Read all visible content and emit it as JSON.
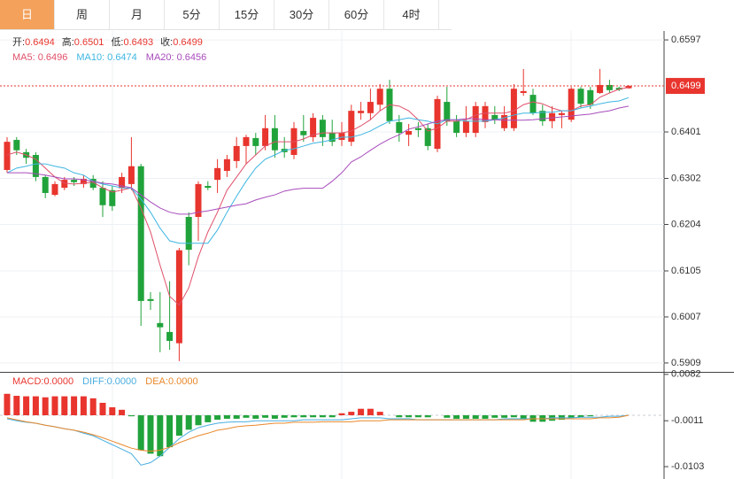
{
  "tabs": [
    "日",
    "周",
    "月",
    "5分",
    "15分",
    "30分",
    "60分",
    "4时"
  ],
  "chart_data": [
    {
      "type": "candlestick",
      "ohlc_labels": [
        "开:",
        "高:",
        "低:",
        "收:"
      ],
      "up_color": "#e8352e",
      "down_color": "#21a33b",
      "ylim": [
        0.589,
        0.6616
      ],
      "yticks": [
        0.5909,
        0.6007,
        0.6105,
        0.6204,
        0.6302,
        0.6401,
        0.6597
      ],
      "open": [
        0.632,
        0.6384,
        0.6358,
        0.6352,
        0.6305,
        0.6267,
        0.6282,
        0.6299,
        0.629,
        0.6301,
        0.6282,
        0.6277,
        0.6281,
        0.629,
        0.6328,
        0.6045,
        0.5994,
        0.5975,
        0.5951,
        0.622,
        0.622,
        0.6286,
        0.6299,
        0.6318,
        0.6339,
        0.6371,
        0.6388,
        0.6371,
        0.6409,
        0.6365,
        0.6352,
        0.6403,
        0.639,
        0.6427,
        0.6399,
        0.6384,
        0.638,
        0.6441,
        0.6441,
        0.6459,
        0.6493,
        0.6422,
        0.6395,
        0.6409,
        0.6409,
        0.6365,
        0.6465,
        0.6424,
        0.6399,
        0.6399,
        0.6422,
        0.6437,
        0.6409,
        0.6409,
        0.6484,
        0.648,
        0.6446,
        0.6424,
        0.6437,
        0.6427,
        0.6493,
        0.649,
        0.6484,
        0.6501,
        0.6495,
        0.6494
      ],
      "high": [
        0.639,
        0.639,
        0.6365,
        0.6358,
        0.6309,
        0.6296,
        0.6305,
        0.6305,
        0.6309,
        0.6309,
        0.6296,
        0.6286,
        0.6314,
        0.639,
        0.6333,
        0.606,
        0.606,
        0.6083,
        0.6154,
        0.623,
        0.6296,
        0.6296,
        0.6343,
        0.6352,
        0.639,
        0.6395,
        0.6399,
        0.6437,
        0.6437,
        0.639,
        0.6422,
        0.6437,
        0.6441,
        0.6437,
        0.6427,
        0.6422,
        0.6459,
        0.6465,
        0.6493,
        0.6503,
        0.6512,
        0.6437,
        0.6418,
        0.6422,
        0.6418,
        0.6478,
        0.6497,
        0.6437,
        0.6456,
        0.6465,
        0.6465,
        0.6456,
        0.6456,
        0.6503,
        0.6535,
        0.6493,
        0.6459,
        0.6456,
        0.6446,
        0.6497,
        0.6497,
        0.6497,
        0.6535,
        0.6512,
        0.6497,
        0.6501
      ],
      "low": [
        0.6314,
        0.6352,
        0.6333,
        0.6296,
        0.626,
        0.6264,
        0.6277,
        0.6286,
        0.6282,
        0.6277,
        0.622,
        0.6233,
        0.6271,
        0.6277,
        0.5988,
        0.6022,
        0.5932,
        0.5937,
        0.5913,
        0.6117,
        0.6169,
        0.6277,
        0.6271,
        0.6305,
        0.6324,
        0.6333,
        0.6352,
        0.6362,
        0.6346,
        0.6346,
        0.6343,
        0.638,
        0.638,
        0.6371,
        0.6371,
        0.6371,
        0.6371,
        0.6427,
        0.6427,
        0.6446,
        0.6418,
        0.638,
        0.6371,
        0.639,
        0.6362,
        0.6358,
        0.6414,
        0.639,
        0.639,
        0.639,
        0.6409,
        0.6418,
        0.6403,
        0.6403,
        0.6478,
        0.6437,
        0.6414,
        0.6409,
        0.6409,
        0.6422,
        0.6452,
        0.645,
        0.6482,
        0.6484,
        0.6488,
        0.6493
      ],
      "close": [
        0.638,
        0.6362,
        0.6346,
        0.6305,
        0.6271,
        0.629,
        0.6299,
        0.6294,
        0.6301,
        0.6282,
        0.6245,
        0.6243,
        0.6305,
        0.6328,
        0.6041,
        0.6041,
        0.5985,
        0.5956,
        0.6149,
        0.615,
        0.629,
        0.6282,
        0.6324,
        0.6343,
        0.6371,
        0.639,
        0.6371,
        0.6409,
        0.6362,
        0.6358,
        0.6409,
        0.6394,
        0.6431,
        0.639,
        0.638,
        0.6399,
        0.6446,
        0.6446,
        0.6465,
        0.6493,
        0.6424,
        0.6399,
        0.6403,
        0.6405,
        0.6371,
        0.6471,
        0.6424,
        0.6399,
        0.6424,
        0.6456,
        0.6456,
        0.6427,
        0.6437,
        0.6493,
        0.6488,
        0.6441,
        0.6424,
        0.6441,
        0.6441,
        0.6493,
        0.6461,
        0.6459,
        0.6501,
        0.649,
        0.6491,
        0.6499
      ],
      "series": [
        {
          "name": "MA5:",
          "color": "#e0506a",
          "values": [
            0.6352,
            0.6358,
            0.6352,
            0.6343,
            0.6324,
            0.6305,
            0.6292,
            0.629,
            0.6292,
            0.6294,
            0.6282,
            0.6273,
            0.6277,
            0.6282,
            0.6239,
            0.6188,
            0.6117,
            0.6051,
            0.6032,
            0.6069,
            0.6135,
            0.6188,
            0.623,
            0.6277,
            0.6305,
            0.6333,
            0.6352,
            0.6371,
            0.638,
            0.638,
            0.638,
            0.6386,
            0.6395,
            0.6399,
            0.6399,
            0.6399,
            0.6403,
            0.6414,
            0.6427,
            0.6446,
            0.6459,
            0.6456,
            0.6446,
            0.6427,
            0.6403,
            0.6409,
            0.6424,
            0.6424,
            0.6427,
            0.6437,
            0.6441,
            0.6441,
            0.6441,
            0.6446,
            0.6459,
            0.6465,
            0.6461,
            0.6452,
            0.6446,
            0.6446,
            0.6456,
            0.6459,
            0.6475,
            0.6484,
            0.6492,
            0.6496
          ]
        },
        {
          "name": "MA10:",
          "color": "#3db6e2",
          "values": [
            0.6314,
            0.6324,
            0.6328,
            0.6333,
            0.6333,
            0.6328,
            0.6324,
            0.6314,
            0.6309,
            0.6296,
            0.629,
            0.6286,
            0.6282,
            0.6281,
            0.6258,
            0.623,
            0.6196,
            0.6169,
            0.6164,
            0.6164,
            0.6164,
            0.6164,
            0.6192,
            0.623,
            0.6264,
            0.6296,
            0.6324,
            0.6343,
            0.6352,
            0.6362,
            0.6365,
            0.6371,
            0.6377,
            0.638,
            0.6384,
            0.639,
            0.639,
            0.6395,
            0.6403,
            0.6414,
            0.6424,
            0.6427,
            0.6431,
            0.6427,
            0.6424,
            0.6418,
            0.6427,
            0.6427,
            0.6424,
            0.6424,
            0.6424,
            0.6427,
            0.6431,
            0.6437,
            0.6441,
            0.6441,
            0.6443,
            0.6443,
            0.6446,
            0.6446,
            0.6452,
            0.6456,
            0.6461,
            0.6465,
            0.6467,
            0.6474
          ]
        },
        {
          "name": "MA20:",
          "color": "#a84cbc",
          "values": [
            0.6314,
            0.6314,
            0.6314,
            0.6312,
            0.6309,
            0.6305,
            0.6301,
            0.6301,
            0.6299,
            0.6296,
            0.6292,
            0.629,
            0.6286,
            0.6282,
            0.6267,
            0.6252,
            0.6239,
            0.623,
            0.6226,
            0.6226,
            0.623,
            0.6233,
            0.6237,
            0.6241,
            0.6245,
            0.6248,
            0.6256,
            0.6262,
            0.6267,
            0.6275,
            0.6279,
            0.6281,
            0.6281,
            0.6281,
            0.6296,
            0.6314,
            0.6337,
            0.6348,
            0.6362,
            0.6375,
            0.6386,
            0.6395,
            0.6407,
            0.6412,
            0.6418,
            0.6424,
            0.6427,
            0.6427,
            0.6429,
            0.6429,
            0.6427,
            0.6427,
            0.6426,
            0.6426,
            0.6426,
            0.6427,
            0.6429,
            0.6431,
            0.6433,
            0.6435,
            0.6437,
            0.6439,
            0.6443,
            0.6446,
            0.6452,
            0.6456
          ]
        }
      ]
    },
    {
      "type": "macd",
      "name": "MACD:",
      "value_label": "0.0000",
      "label_color": "#e8352e",
      "up_color": "#e8352e",
      "down_color": "#21a33b",
      "ylim": [
        -0.0126,
        0.0087
      ],
      "yticks": [
        -0.0103,
        -0.0011,
        0.0082
      ],
      "values": [
        0.0043,
        0.0039,
        0.0038,
        0.0038,
        0.0036,
        0.0038,
        0.0038,
        0.0038,
        0.0038,
        0.0034,
        0.0025,
        0.0016,
        0.0011,
        -0.0002,
        -0.007,
        -0.0077,
        -0.0082,
        -0.0064,
        -0.0041,
        -0.0029,
        -0.002,
        -0.0014,
        -0.0009,
        -0.0007,
        -0.0007,
        -0.0005,
        -0.0007,
        -0.0005,
        -0.0007,
        -0.0005,
        -0.0004,
        -0.0004,
        -0.0004,
        -0.0004,
        -0.0004,
        0.0004,
        0.0007,
        0.0013,
        0.0013,
        0.0007,
        0,
        -0.0004,
        -0.0004,
        -0.0004,
        -0.0004,
        0,
        -0.0005,
        -0.0007,
        -0.0007,
        -0.0007,
        -0.0007,
        -0.0005,
        -0.0005,
        -0.0004,
        -0.0007,
        -0.0013,
        -0.0013,
        -0.0011,
        -0.0009,
        -0.0005,
        -0.0004,
        -0.0002,
        0,
        0,
        0,
        0
      ],
      "series": [
        {
          "name": "DIFF:",
          "value_label": "0.0000",
          "color": "#4aaee0",
          "values": [
            -0.0007,
            -0.0011,
            -0.0014,
            -0.0016,
            -0.002,
            -0.0023,
            -0.0027,
            -0.003,
            -0.0036,
            -0.0041,
            -0.005,
            -0.0059,
            -0.0068,
            -0.0077,
            -0.01,
            -0.0095,
            -0.0082,
            -0.0064,
            -0.0047,
            -0.0034,
            -0.0025,
            -0.002,
            -0.0016,
            -0.0014,
            -0.0013,
            -0.0013,
            -0.0011,
            -0.0011,
            -0.0011,
            -0.0011,
            -0.0011,
            -0.0009,
            -0.0009,
            -0.0009,
            -0.0009,
            -0.0009,
            -0.0007,
            -0.0005,
            -0.0005,
            -0.0005,
            -0.0007,
            -0.0007,
            -0.0007,
            -0.0009,
            -0.0009,
            -0.0009,
            -0.0009,
            -0.0009,
            -0.0009,
            -0.0009,
            -0.0009,
            -0.0009,
            -0.0007,
            -0.0007,
            -0.0007,
            -0.0007,
            -0.0007,
            -0.0005,
            -0.0005,
            -0.0005,
            -0.0004,
            -0.0004,
            -0.0004,
            -0.0002,
            -0.0002,
            0
          ]
        },
        {
          "name": "DEA:",
          "value_label": "0.0000",
          "color": "#e8882a",
          "values": [
            -0.0005,
            -0.0009,
            -0.0013,
            -0.0016,
            -0.002,
            -0.0023,
            -0.0027,
            -0.003,
            -0.0034,
            -0.0039,
            -0.0045,
            -0.0052,
            -0.0059,
            -0.0066,
            -0.007,
            -0.0072,
            -0.007,
            -0.0064,
            -0.0055,
            -0.0048,
            -0.0041,
            -0.0036,
            -0.003,
            -0.0027,
            -0.0023,
            -0.0021,
            -0.002,
            -0.0018,
            -0.0016,
            -0.0016,
            -0.0014,
            -0.0014,
            -0.0014,
            -0.0013,
            -0.0013,
            -0.0013,
            -0.0013,
            -0.0011,
            -0.0011,
            -0.0011,
            -0.0009,
            -0.0009,
            -0.0009,
            -0.0009,
            -0.0009,
            -0.0009,
            -0.0009,
            -0.0009,
            -0.0009,
            -0.0009,
            -0.0009,
            -0.0009,
            -0.0009,
            -0.0009,
            -0.0009,
            -0.0007,
            -0.0007,
            -0.0007,
            -0.0007,
            -0.0007,
            -0.0007,
            -0.0007,
            -0.0005,
            -0.0005,
            -0.0004,
            0
          ]
        }
      ]
    }
  ]
}
